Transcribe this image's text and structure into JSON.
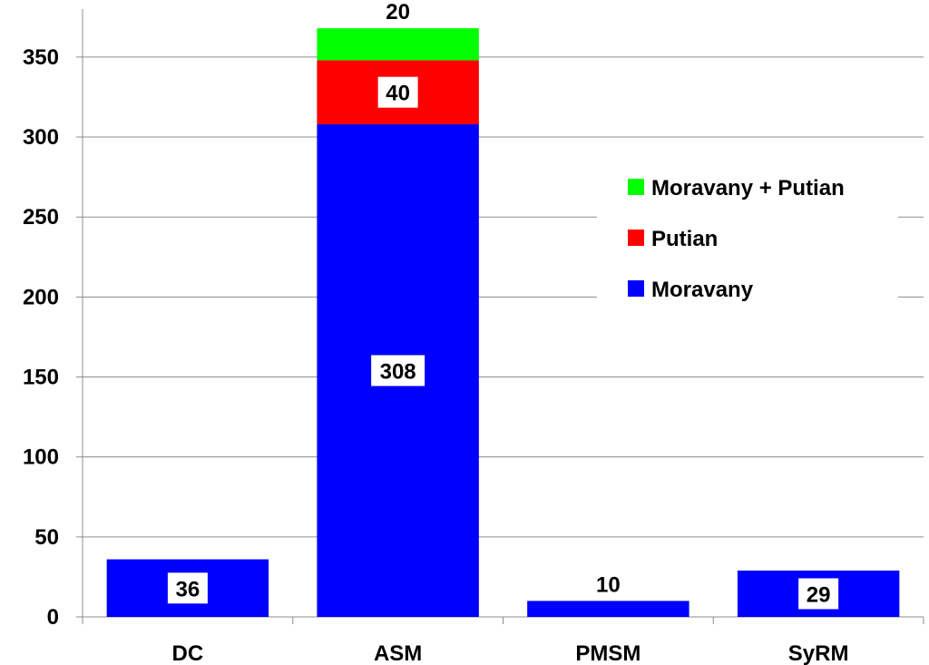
{
  "chart_data": {
    "type": "bar",
    "stacked": true,
    "categories": [
      "DC",
      "ASM",
      "PMSM",
      "SyRM"
    ],
    "series": [
      {
        "name": "Moravany",
        "color": "#0000ff",
        "values": [
          36,
          308,
          10,
          29
        ],
        "labels": [
          "36",
          "308",
          "10",
          "29"
        ]
      },
      {
        "name": "Putian",
        "color": "#ff0000",
        "values": [
          0,
          40,
          0,
          0
        ],
        "labels": [
          "",
          "40",
          "",
          ""
        ]
      },
      {
        "name": "Moravany + Putian",
        "color": "#00ff00",
        "values": [
          0,
          20,
          0,
          0
        ],
        "labels": [
          "",
          "20",
          "",
          ""
        ]
      }
    ],
    "legend_order": [
      "Moravany + Putian",
      "Putian",
      "Moravany"
    ],
    "yticks": [
      "0",
      "50",
      "100",
      "150",
      "200",
      "250",
      "300",
      "350"
    ],
    "ylim": [
      0,
      380
    ],
    "grid": true,
    "legend_position": "right",
    "title": "",
    "xlabel": "",
    "ylabel": ""
  }
}
